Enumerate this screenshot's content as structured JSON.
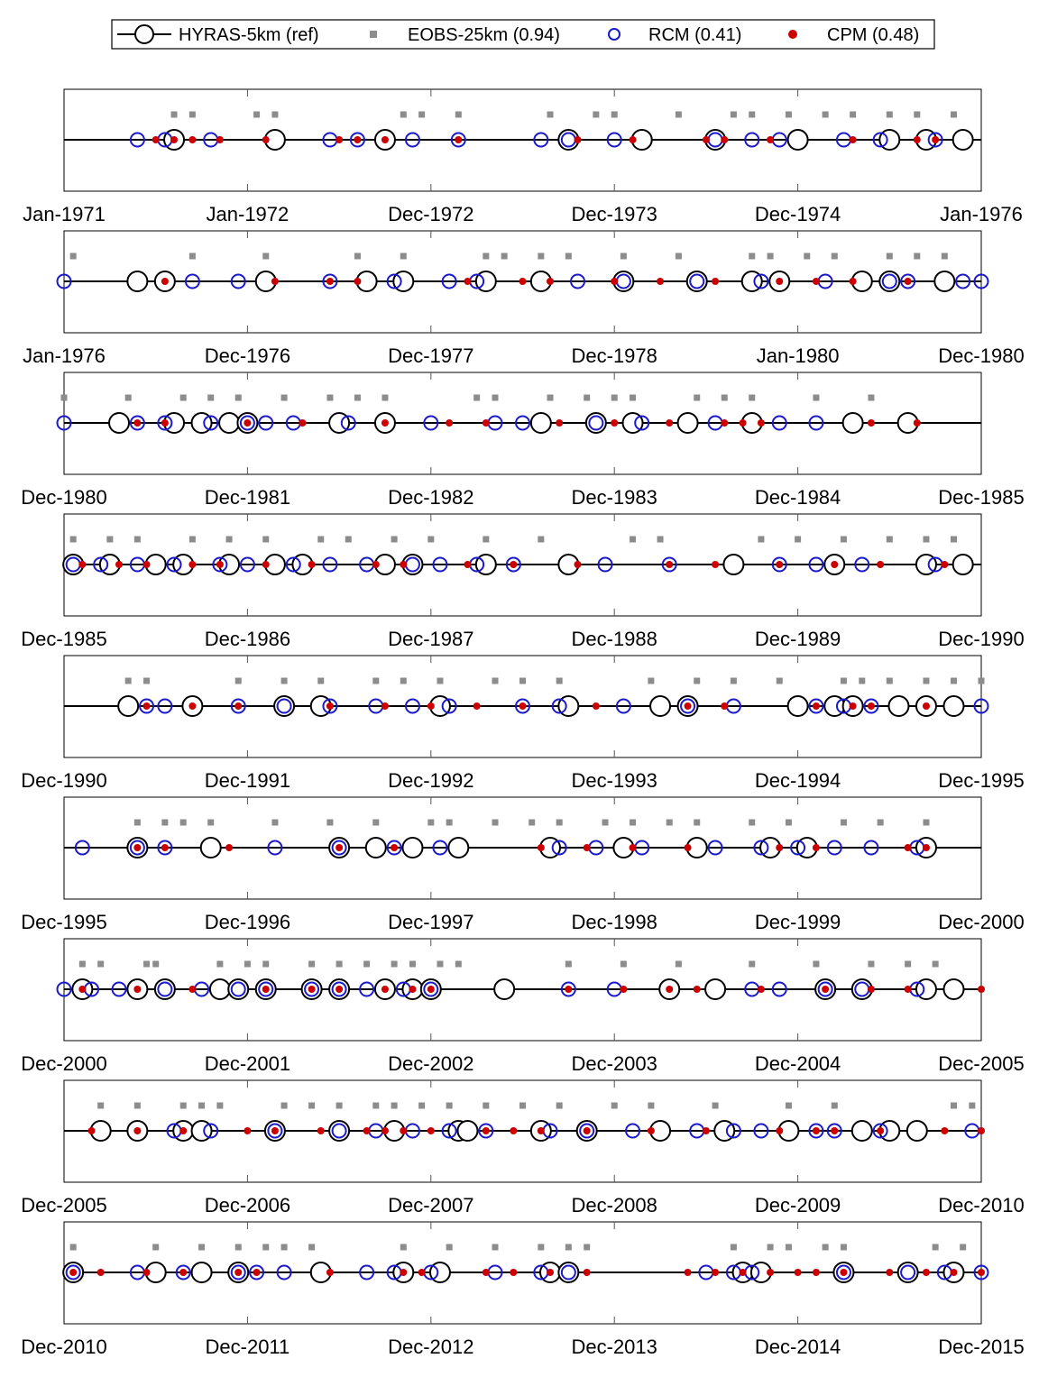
{
  "chart_data": {
    "type": "scatter",
    "colors": {
      "ref": "#000000",
      "eobs": "#8c8c8c",
      "rcm": "#1a1acc",
      "cpm": "#cc0000"
    },
    "legend": {
      "placement": "top-center",
      "entries": [
        {
          "key": "ref",
          "label": "HYRAS-5km (ref)",
          "marker": "open-circle-line"
        },
        {
          "key": "eobs",
          "label": "EOBS-25km (0.94)",
          "marker": "gray-square"
        },
        {
          "key": "rcm",
          "label": "RCM (0.41)",
          "marker": "blue-open-circle"
        },
        {
          "key": "cpm",
          "label": "CPM (0.48)",
          "marker": "red-dot"
        }
      ]
    },
    "panels": [
      {
        "tick_labels": [
          "Jan-1971",
          "Jan-1972",
          "Dec-1972",
          "Dec-1973",
          "Dec-1974",
          "Jan-1976"
        ],
        "ref": [
          0.12,
          0.23,
          0.35,
          0.55,
          0.63,
          0.71,
          0.8,
          0.9,
          0.94,
          0.98
        ],
        "eobs": [
          0.12,
          0.14,
          0.21,
          0.23,
          0.37,
          0.39,
          0.43,
          0.53,
          0.58,
          0.6,
          0.67,
          0.73,
          0.75,
          0.79,
          0.83,
          0.86,
          0.9,
          0.93,
          0.97
        ],
        "rcm": [
          0.08,
          0.11,
          0.16,
          0.29,
          0.32,
          0.38,
          0.43,
          0.52,
          0.55,
          0.6,
          0.71,
          0.75,
          0.78,
          0.85,
          0.89,
          0.95
        ],
        "cpm": [
          0.1,
          0.12,
          0.14,
          0.17,
          0.22,
          0.3,
          0.32,
          0.35,
          0.43,
          0.56,
          0.62,
          0.7,
          0.72,
          0.77,
          0.86,
          0.93,
          0.95
        ]
      },
      {
        "tick_labels": [
          "Jan-1976",
          "Dec-1976",
          "Dec-1977",
          "Dec-1978",
          "Jan-1980",
          "Dec-1980"
        ],
        "ref": [
          0.08,
          0.11,
          0.22,
          0.33,
          0.37,
          0.46,
          0.52,
          0.61,
          0.69,
          0.75,
          0.78,
          0.87,
          0.9,
          0.96
        ],
        "eobs": [
          0.01,
          0.14,
          0.22,
          0.32,
          0.37,
          0.46,
          0.48,
          0.52,
          0.55,
          0.61,
          0.67,
          0.75,
          0.77,
          0.81,
          0.84,
          0.9,
          0.93,
          0.96
        ],
        "rcm": [
          0.0,
          0.14,
          0.19,
          0.29,
          0.36,
          0.42,
          0.45,
          0.56,
          0.61,
          0.69,
          0.76,
          0.83,
          0.9,
          0.92,
          0.98,
          1.0
        ],
        "cpm": [
          0.11,
          0.23,
          0.29,
          0.32,
          0.44,
          0.5,
          0.53,
          0.6,
          0.65,
          0.71,
          0.78,
          0.82,
          0.86,
          0.92
        ]
      },
      {
        "tick_labels": [
          "Dec-1980",
          "Dec-1981",
          "Dec-1982",
          "Dec-1983",
          "Dec-1984",
          "Dec-1985"
        ],
        "ref": [
          0.06,
          0.12,
          0.15,
          0.18,
          0.2,
          0.3,
          0.35,
          0.52,
          0.58,
          0.62,
          0.68,
          0.75,
          0.86,
          0.92
        ],
        "eobs": [
          0.0,
          0.07,
          0.13,
          0.16,
          0.19,
          0.24,
          0.29,
          0.32,
          0.35,
          0.45,
          0.47,
          0.53,
          0.57,
          0.6,
          0.62,
          0.69,
          0.72,
          0.75,
          0.82,
          0.88
        ],
        "rcm": [
          0.0,
          0.08,
          0.11,
          0.16,
          0.2,
          0.22,
          0.25,
          0.31,
          0.4,
          0.47,
          0.5,
          0.58,
          0.63,
          0.71,
          0.78,
          0.82
        ],
        "cpm": [
          0.08,
          0.11,
          0.2,
          0.26,
          0.35,
          0.42,
          0.46,
          0.54,
          0.6,
          0.66,
          0.72,
          0.74,
          0.76,
          0.88,
          0.93
        ]
      },
      {
        "tick_labels": [
          "Dec-1985",
          "Dec-1986",
          "Dec-1987",
          "Dec-1988",
          "Dec-1989",
          "Dec-1990"
        ],
        "ref": [
          0.01,
          0.05,
          0.1,
          0.13,
          0.18,
          0.23,
          0.26,
          0.35,
          0.38,
          0.46,
          0.55,
          0.73,
          0.84,
          0.94,
          0.98
        ],
        "eobs": [
          0.01,
          0.05,
          0.08,
          0.14,
          0.18,
          0.22,
          0.28,
          0.31,
          0.36,
          0.4,
          0.46,
          0.52,
          0.62,
          0.65,
          0.76,
          0.8,
          0.85,
          0.9,
          0.94,
          0.97
        ],
        "rcm": [
          0.01,
          0.04,
          0.08,
          0.12,
          0.17,
          0.2,
          0.25,
          0.29,
          0.33,
          0.38,
          0.41,
          0.45,
          0.49,
          0.59,
          0.66,
          0.78,
          0.82,
          0.87,
          0.95
        ],
        "cpm": [
          0.02,
          0.06,
          0.09,
          0.14,
          0.17,
          0.22,
          0.27,
          0.34,
          0.37,
          0.44,
          0.49,
          0.56,
          0.66,
          0.71,
          0.78,
          0.84,
          0.89,
          0.96
        ]
      },
      {
        "tick_labels": [
          "Dec-1990",
          "Dec-1991",
          "Dec-1992",
          "Dec-1993",
          "Dec-1994",
          "Dec-1995"
        ],
        "ref": [
          0.07,
          0.14,
          0.24,
          0.28,
          0.41,
          0.55,
          0.65,
          0.68,
          0.8,
          0.84,
          0.86,
          0.91,
          0.94,
          0.97
        ],
        "eobs": [
          0.07,
          0.09,
          0.19,
          0.24,
          0.28,
          0.34,
          0.37,
          0.41,
          0.47,
          0.5,
          0.54,
          0.64,
          0.69,
          0.73,
          0.78,
          0.85,
          0.87,
          0.9,
          0.94,
          0.97,
          1.0
        ],
        "rcm": [
          0.09,
          0.11,
          0.19,
          0.24,
          0.29,
          0.34,
          0.38,
          0.42,
          0.5,
          0.54,
          0.61,
          0.68,
          0.73,
          0.82,
          0.85,
          0.88,
          1.0
        ],
        "cpm": [
          0.09,
          0.14,
          0.19,
          0.29,
          0.35,
          0.4,
          0.45,
          0.5,
          0.58,
          0.68,
          0.72,
          0.82,
          0.86,
          0.88,
          0.94
        ]
      },
      {
        "tick_labels": [
          "Dec-1995",
          "Dec-1996",
          "Dec-1997",
          "Dec-1998",
          "Dec-1999",
          "Dec-2000"
        ],
        "ref": [
          0.08,
          0.16,
          0.3,
          0.34,
          0.38,
          0.43,
          0.53,
          0.61,
          0.69,
          0.77,
          0.81,
          0.94
        ],
        "eobs": [
          0.08,
          0.11,
          0.13,
          0.16,
          0.23,
          0.29,
          0.34,
          0.4,
          0.42,
          0.47,
          0.51,
          0.54,
          0.59,
          0.62,
          0.66,
          0.69,
          0.75,
          0.79,
          0.85,
          0.89,
          0.94
        ],
        "rcm": [
          0.02,
          0.08,
          0.11,
          0.23,
          0.3,
          0.36,
          0.41,
          0.54,
          0.58,
          0.63,
          0.71,
          0.76,
          0.8,
          0.84,
          0.88,
          0.93
        ],
        "cpm": [
          0.08,
          0.11,
          0.18,
          0.3,
          0.36,
          0.52,
          0.57,
          0.62,
          0.68,
          0.78,
          0.82,
          0.92,
          0.94
        ]
      },
      {
        "tick_labels": [
          "Dec-2000",
          "Dec-2001",
          "Dec-2002",
          "Dec-2003",
          "Dec-2004",
          "Dec-2005"
        ],
        "ref": [
          0.02,
          0.08,
          0.11,
          0.17,
          0.19,
          0.22,
          0.27,
          0.3,
          0.35,
          0.38,
          0.4,
          0.48,
          0.66,
          0.71,
          0.83,
          0.87,
          0.94,
          0.97
        ],
        "eobs": [
          0.02,
          0.04,
          0.09,
          0.1,
          0.17,
          0.2,
          0.22,
          0.27,
          0.3,
          0.33,
          0.36,
          0.38,
          0.41,
          0.43,
          0.55,
          0.61,
          0.67,
          0.75,
          0.82,
          0.88,
          0.92,
          0.95
        ],
        "rcm": [
          0.0,
          0.03,
          0.06,
          0.11,
          0.15,
          0.19,
          0.22,
          0.27,
          0.3,
          0.33,
          0.37,
          0.4,
          0.55,
          0.6,
          0.75,
          0.78,
          0.83,
          0.87,
          0.93
        ],
        "cpm": [
          0.02,
          0.08,
          0.14,
          0.22,
          0.27,
          0.3,
          0.35,
          0.38,
          0.4,
          0.55,
          0.61,
          0.66,
          0.69,
          0.76,
          0.83,
          0.88,
          0.92,
          1.0
        ]
      },
      {
        "tick_labels": [
          "Dec-2005",
          "Dec-2006",
          "Dec-2007",
          "Dec-2008",
          "Dec-2009",
          "Dec-2010"
        ],
        "ref": [
          0.04,
          0.08,
          0.13,
          0.15,
          0.23,
          0.3,
          0.36,
          0.43,
          0.44,
          0.52,
          0.57,
          0.65,
          0.72,
          0.79,
          0.87,
          0.9,
          0.93
        ],
        "eobs": [
          0.04,
          0.08,
          0.13,
          0.15,
          0.17,
          0.24,
          0.27,
          0.3,
          0.34,
          0.36,
          0.39,
          0.42,
          0.46,
          0.5,
          0.54,
          0.6,
          0.64,
          0.71,
          0.79,
          0.84,
          0.97,
          0.99
        ],
        "rcm": [
          0.12,
          0.16,
          0.23,
          0.3,
          0.34,
          0.38,
          0.42,
          0.46,
          0.53,
          0.57,
          0.62,
          0.69,
          0.73,
          0.76,
          0.82,
          0.84,
          0.89,
          0.99
        ],
        "cpm": [
          0.03,
          0.08,
          0.13,
          0.2,
          0.23,
          0.28,
          0.33,
          0.35,
          0.37,
          0.4,
          0.46,
          0.49,
          0.52,
          0.57,
          0.64,
          0.7,
          0.78,
          0.82,
          0.84,
          0.89,
          0.96,
          1.0
        ]
      },
      {
        "tick_labels": [
          "Dec-2010",
          "Dec-2011",
          "Dec-2012",
          "Dec-2013",
          "Dec-2014",
          "Dec-2015"
        ],
        "ref": [
          0.01,
          0.1,
          0.15,
          0.19,
          0.28,
          0.37,
          0.41,
          0.53,
          0.55,
          0.74,
          0.76,
          0.85,
          0.92,
          0.97
        ],
        "eobs": [
          0.01,
          0.1,
          0.15,
          0.19,
          0.22,
          0.24,
          0.27,
          0.37,
          0.42,
          0.47,
          0.52,
          0.55,
          0.57,
          0.73,
          0.77,
          0.79,
          0.83,
          0.85,
          0.95,
          0.98
        ],
        "rcm": [
          0.01,
          0.08,
          0.13,
          0.19,
          0.21,
          0.24,
          0.33,
          0.36,
          0.4,
          0.47,
          0.52,
          0.55,
          0.7,
          0.73,
          0.75,
          0.85,
          0.92,
          0.96,
          1.0
        ],
        "cpm": [
          0.01,
          0.04,
          0.09,
          0.13,
          0.19,
          0.21,
          0.29,
          0.37,
          0.39,
          0.46,
          0.49,
          0.53,
          0.57,
          0.68,
          0.71,
          0.74,
          0.77,
          0.8,
          0.82,
          0.85,
          0.9,
          0.94,
          0.97,
          1.0
        ]
      }
    ]
  }
}
